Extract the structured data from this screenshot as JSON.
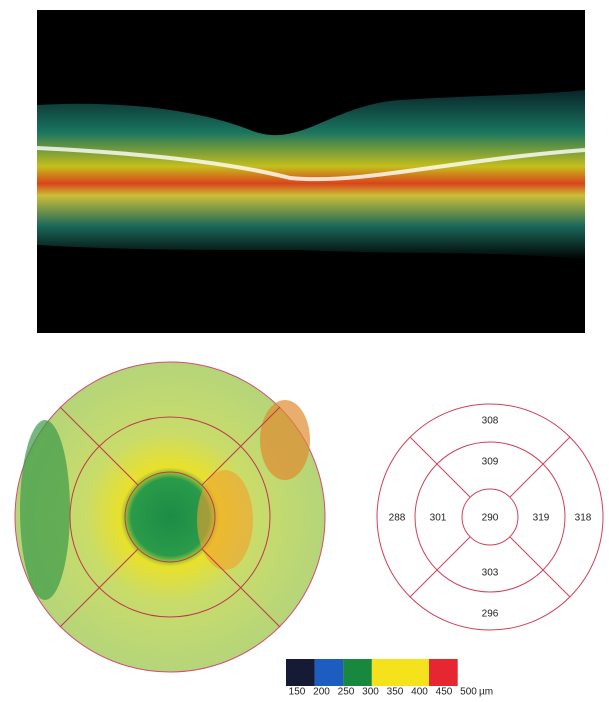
{
  "thickness_grid": {
    "outer_superior": "308",
    "inner_superior": "309",
    "outer_nasal": "288",
    "inner_nasal": "301",
    "center": "290",
    "inner_temporal": "319",
    "outer_temporal": "318",
    "inner_inferior": "303",
    "outer_inferior": "296"
  },
  "color_scale": {
    "ticks": [
      150,
      200,
      250,
      300,
      350,
      400,
      450,
      500
    ],
    "unit": "µm",
    "colors": [
      "#151a35",
      "#1d5cc0",
      "#17883e",
      "#f3e21c",
      "#f3e21c",
      "#e62630",
      "#e62630"
    ]
  }
}
